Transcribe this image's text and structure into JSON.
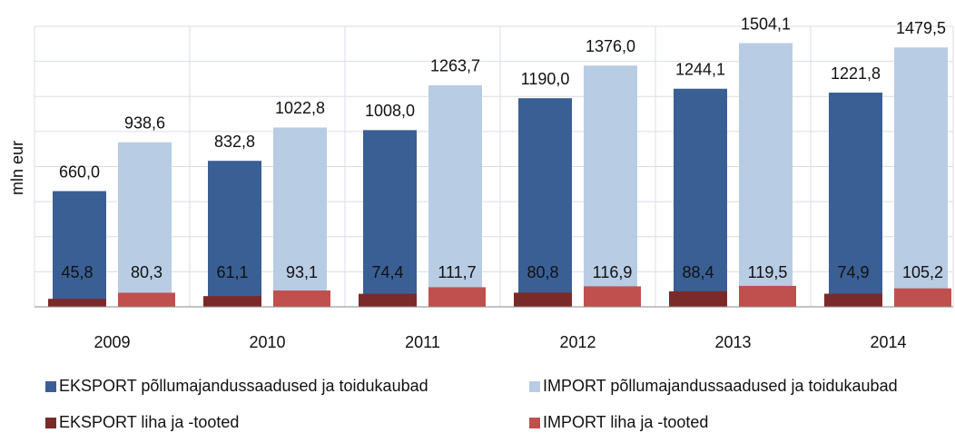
{
  "chart_data": {
    "type": "bar",
    "ylabel": "mln eur",
    "categories": [
      "2009",
      "2010",
      "2011",
      "2012",
      "2013",
      "2014"
    ],
    "ylim": [
      0,
      1600
    ],
    "yticks": [
      0,
      200,
      400,
      600,
      800,
      1000,
      1200,
      1400,
      1600
    ],
    "grid": true,
    "series": [
      {
        "name": "EKSPORT põllumajandussaadused ja toidukaubad",
        "color": "#3a5f94",
        "values": [
          660.0,
          832.8,
          1008.0,
          1190.0,
          1244.1,
          1221.8
        ],
        "value_labels": [
          "660,0",
          "832,8",
          "1008,0",
          "1190,0",
          "1244,1",
          "1221,8"
        ]
      },
      {
        "name": "IMPORT põllumajandussaadused ja toidukaubad",
        "color": "#b8cce4",
        "values": [
          938.6,
          1022.8,
          1263.7,
          1376.0,
          1504.1,
          1479.5
        ],
        "value_labels": [
          "938,6",
          "1022,8",
          "1263,7",
          "1376,0",
          "1504,1",
          "1479,5"
        ]
      },
      {
        "name": "EKSPORT liha ja -tooted",
        "color": "#7b2a2a",
        "values": [
          45.8,
          61.1,
          74.4,
          80.8,
          88.4,
          74.9
        ],
        "value_labels": [
          "45,8",
          "61,1",
          "74,4",
          "80,8",
          "88,4",
          "74,9"
        ]
      },
      {
        "name": "IMPORT liha ja -tooted",
        "color": "#c0504d",
        "values": [
          80.3,
          93.1,
          111.7,
          116.9,
          119.5,
          105.2
        ],
        "value_labels": [
          "80,3",
          "93,1",
          "111,7",
          "116,9",
          "119,5",
          "105,2"
        ]
      }
    ]
  }
}
